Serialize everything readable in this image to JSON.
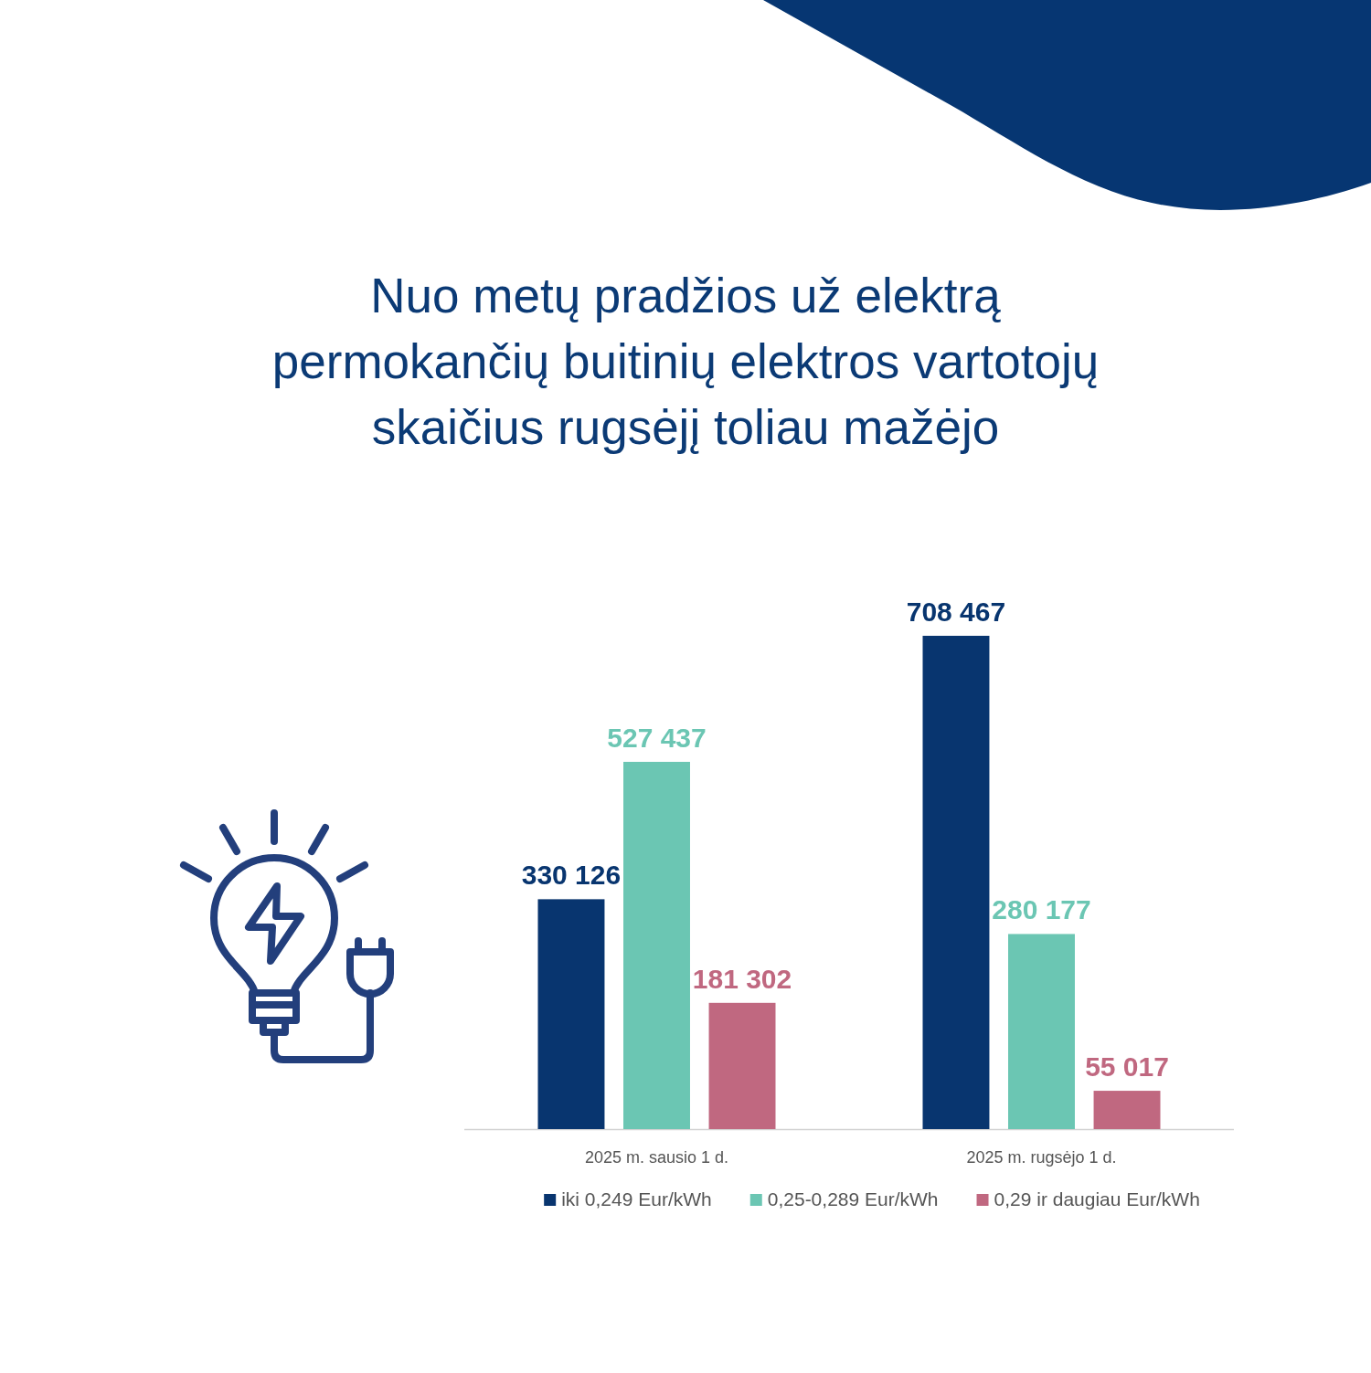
{
  "chart_data": {
    "type": "bar",
    "title": "Nuo metų pradžios už elektrą\npermokančių buitinių elektros vartotojų\nskaičius rugsėjį toliau mažėjo",
    "categories": [
      "2025 m. sausio 1 d.",
      "2025 m. rugsėjo 1 d."
    ],
    "series": [
      {
        "name": "iki 0,249 Eur/kWh",
        "color": "#08356f",
        "values": [
          330126,
          708467
        ],
        "value_labels": [
          "330 126",
          "708 467"
        ]
      },
      {
        "name": "0,25-0,289 Eur/kWh",
        "color": "#6bc6b3",
        "values": [
          527437,
          280177
        ],
        "value_labels": [
          "527 437",
          "280 177"
        ]
      },
      {
        "name": "0,29 ir daugiau Eur/kWh",
        "color": "#c06880",
        "values": [
          181302,
          55017
        ],
        "value_labels": [
          "181 302",
          "55 017"
        ]
      }
    ],
    "legend": "bottom"
  }
}
